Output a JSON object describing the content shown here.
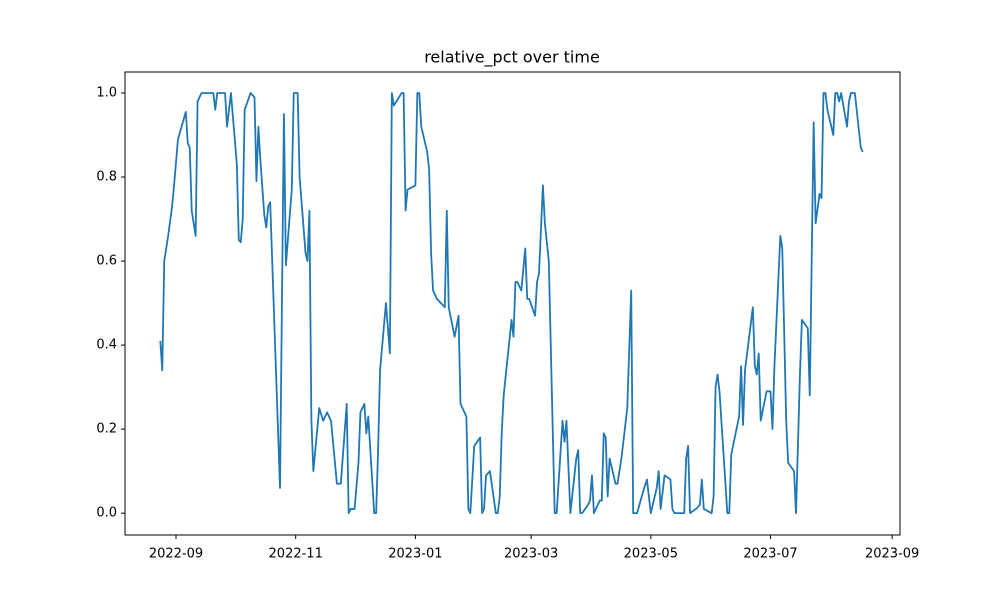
{
  "chart_data": {
    "type": "line",
    "title": "relative_pct over time",
    "color": "#1f77b4",
    "xlim": [
      "2022-08-06",
      "2023-09-05"
    ],
    "xticks": [
      {
        "value": "2022-09-01",
        "label": "2022-09"
      },
      {
        "value": "2022-11-01",
        "label": "2022-11"
      },
      {
        "value": "2023-01-01",
        "label": "2023-01"
      },
      {
        "value": "2023-03-01",
        "label": "2023-03"
      },
      {
        "value": "2023-05-01",
        "label": "2023-05"
      },
      {
        "value": "2023-07-01",
        "label": "2023-07"
      },
      {
        "value": "2023-09-01",
        "label": "2023-09"
      }
    ],
    "ylim": [
      -0.052,
      1.05
    ],
    "yticks": [
      {
        "value": 0,
        "label": "0.0"
      },
      {
        "value": 0.2,
        "label": "0.2"
      },
      {
        "value": 0.4,
        "label": "0.4"
      },
      {
        "value": 0.6,
        "label": "0.6"
      },
      {
        "value": 0.8,
        "label": "0.8"
      },
      {
        "value": 1,
        "label": "1.0"
      }
    ],
    "x": [
      "2022-08-24",
      "2022-08-25",
      "2022-08-26",
      "2022-08-28",
      "2022-08-30",
      "2022-08-31",
      "2022-09-02",
      "2022-09-06",
      "2022-09-07",
      "2022-09-08",
      "2022-09-09",
      "2022-09-11",
      "2022-09-12",
      "2022-09-14",
      "2022-09-16",
      "2022-09-20",
      "2022-09-21",
      "2022-09-22",
      "2022-09-26",
      "2022-09-27",
      "2022-09-29",
      "2022-10-02",
      "2022-10-03",
      "2022-10-04",
      "2022-10-05",
      "2022-10-06",
      "2022-10-09",
      "2022-10-11",
      "2022-10-12",
      "2022-10-13",
      "2022-10-14",
      "2022-10-16",
      "2022-10-17",
      "2022-10-18",
      "2022-10-19",
      "2022-10-24",
      "2022-10-26",
      "2022-10-27",
      "2022-10-28",
      "2022-10-30",
      "2022-10-31",
      "2022-11-02",
      "2022-11-03",
      "2022-11-06",
      "2022-11-07",
      "2022-11-08",
      "2022-11-09",
      "2022-11-10",
      "2022-11-13",
      "2022-11-15",
      "2022-11-17",
      "2022-11-19",
      "2022-11-21",
      "2022-11-22",
      "2022-11-24",
      "2022-11-27",
      "2022-11-28",
      "2022-11-29",
      "2022-12-01",
      "2022-12-03",
      "2022-12-04",
      "2022-12-06",
      "2022-12-07",
      "2022-12-08",
      "2022-12-11",
      "2022-12-12",
      "2022-12-13",
      "2022-12-14",
      "2022-12-17",
      "2022-12-19",
      "2022-12-20",
      "2022-12-21",
      "2022-12-25",
      "2022-12-26",
      "2022-12-27",
      "2022-12-28",
      "2023-01-01",
      "2023-01-02",
      "2023-01-03",
      "2023-01-04",
      "2023-01-07",
      "2023-01-08",
      "2023-01-09",
      "2023-01-10",
      "2023-01-12",
      "2023-01-16",
      "2023-01-17",
      "2023-01-18",
      "2023-01-21",
      "2023-01-23",
      "2023-01-24",
      "2023-01-27",
      "2023-01-28",
      "2023-01-29",
      "2023-01-31",
      "2023-02-03",
      "2023-02-04",
      "2023-02-05",
      "2023-02-06",
      "2023-02-08",
      "2023-02-11",
      "2023-02-12",
      "2023-02-13",
      "2023-02-14",
      "2023-02-15",
      "2023-02-19",
      "2023-02-20",
      "2023-02-21",
      "2023-02-22",
      "2023-02-24",
      "2023-02-26",
      "2023-02-27",
      "2023-02-28",
      "2023-03-03",
      "2023-03-04",
      "2023-03-05",
      "2023-03-07",
      "2023-03-08",
      "2023-03-10",
      "2023-03-13",
      "2023-03-14",
      "2023-03-17",
      "2023-03-18",
      "2023-03-19",
      "2023-03-21",
      "2023-03-24",
      "2023-03-25",
      "2023-03-26",
      "2023-03-27",
      "2023-03-30",
      "2023-03-31",
      "2023-04-01",
      "2023-04-02",
      "2023-04-05",
      "2023-04-06",
      "2023-04-07",
      "2023-04-08",
      "2023-04-09",
      "2023-04-10",
      "2023-04-13",
      "2023-04-14",
      "2023-04-16",
      "2023-04-19",
      "2023-04-21",
      "2023-04-22",
      "2023-04-24",
      "2023-04-27",
      "2023-04-29",
      "2023-05-01",
      "2023-05-04",
      "2023-05-05",
      "2023-05-06",
      "2023-05-08",
      "2023-05-11",
      "2023-05-12",
      "2023-05-13",
      "2023-05-18",
      "2023-05-19",
      "2023-05-20",
      "2023-05-21",
      "2023-05-24",
      "2023-05-26",
      "2023-05-27",
      "2023-05-28",
      "2023-06-01",
      "2023-06-02",
      "2023-06-03",
      "2023-06-04",
      "2023-06-05",
      "2023-06-09",
      "2023-06-10",
      "2023-06-11",
      "2023-06-15",
      "2023-06-16",
      "2023-06-17",
      "2023-06-18",
      "2023-06-22",
      "2023-06-23",
      "2023-06-24",
      "2023-06-25",
      "2023-06-26",
      "2023-06-29",
      "2023-07-01",
      "2023-07-02",
      "2023-07-03",
      "2023-07-06",
      "2023-07-07",
      "2023-07-09",
      "2023-07-10",
      "2023-07-13",
      "2023-07-14",
      "2023-07-16",
      "2023-07-17",
      "2023-07-20",
      "2023-07-21",
      "2023-07-23",
      "2023-07-24",
      "2023-07-26",
      "2023-07-27",
      "2023-07-28",
      "2023-07-29",
      "2023-07-30",
      "2023-08-02",
      "2023-08-03",
      "2023-08-04",
      "2023-08-05",
      "2023-08-06",
      "2023-08-09",
      "2023-08-10",
      "2023-08-11",
      "2023-08-13",
      "2023-08-16",
      "2023-08-17"
    ],
    "values": [
      0.41,
      0.34,
      0.6,
      0.66,
      0.73,
      0.78,
      0.89,
      0.955,
      0.88,
      0.87,
      0.72,
      0.66,
      0.98,
      1.0,
      1.0,
      1.0,
      0.96,
      1.0,
      1.0,
      0.92,
      1.0,
      0.83,
      0.65,
      0.645,
      0.7,
      0.96,
      1.0,
      0.99,
      0.79,
      0.92,
      0.84,
      0.71,
      0.68,
      0.73,
      0.74,
      0.06,
      0.95,
      0.59,
      0.65,
      0.77,
      1.0,
      1.0,
      0.8,
      0.62,
      0.6,
      0.72,
      0.22,
      0.1,
      0.25,
      0.22,
      0.24,
      0.22,
      0.12,
      0.07,
      0.07,
      0.26,
      0.0,
      0.01,
      0.01,
      0.12,
      0.24,
      0.26,
      0.19,
      0.23,
      0.0,
      0.0,
      0.15,
      0.34,
      0.5,
      0.38,
      1.0,
      0.97,
      1.0,
      1.0,
      0.72,
      0.77,
      0.78,
      1.0,
      1.0,
      0.92,
      0.86,
      0.82,
      0.62,
      0.53,
      0.51,
      0.49,
      0.72,
      0.49,
      0.42,
      0.47,
      0.26,
      0.23,
      0.01,
      0.0,
      0.16,
      0.18,
      0.0,
      0.01,
      0.09,
      0.1,
      0.0,
      0.0,
      0.04,
      0.19,
      0.28,
      0.46,
      0.42,
      0.55,
      0.55,
      0.53,
      0.63,
      0.51,
      0.51,
      0.47,
      0.55,
      0.57,
      0.78,
      0.69,
      0.6,
      0.0,
      0.0,
      0.22,
      0.17,
      0.22,
      0.0,
      0.13,
      0.15,
      0.0,
      0.0,
      0.02,
      0.03,
      0.09,
      0.0,
      0.03,
      0.03,
      0.19,
      0.18,
      0.04,
      0.13,
      0.07,
      0.07,
      0.13,
      0.25,
      0.53,
      0.0,
      0.0,
      0.05,
      0.08,
      0.0,
      0.06,
      0.1,
      0.01,
      0.09,
      0.08,
      0.01,
      0.0,
      0.0,
      0.13,
      0.16,
      0.0,
      0.01,
      0.02,
      0.08,
      0.01,
      0.0,
      0.04,
      0.3,
      0.33,
      0.29,
      0.0,
      0.0,
      0.14,
      0.23,
      0.35,
      0.21,
      0.34,
      0.49,
      0.35,
      0.33,
      0.38,
      0.22,
      0.29,
      0.29,
      0.2,
      0.35,
      0.66,
      0.63,
      0.22,
      0.12,
      0.1,
      0.0,
      0.33,
      0.46,
      0.44,
      0.28,
      0.93,
      0.69,
      0.76,
      0.75,
      1.0,
      1.0,
      0.96,
      0.9,
      1.0,
      1.0,
      0.98,
      1.0,
      0.92,
      0.98,
      1.0,
      1.0,
      0.87,
      0.86
    ]
  }
}
